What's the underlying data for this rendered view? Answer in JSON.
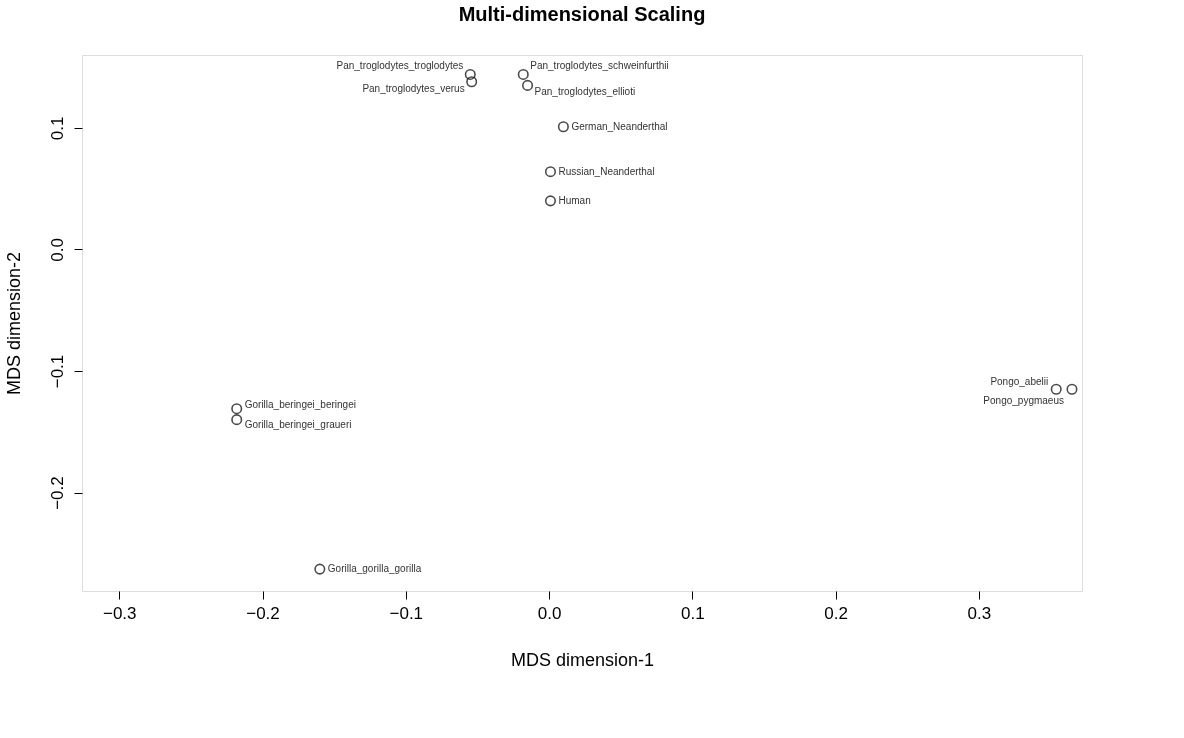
{
  "chart_data": {
    "type": "scatter",
    "title": "Multi-dimensional Scaling",
    "xlabel": "MDS dimension-1",
    "ylabel": "MDS dimension-2",
    "x": [
      -0.055,
      -0.018,
      -0.054,
      -0.015,
      0.01,
      0.001,
      0.001,
      -0.218,
      -0.218,
      -0.16,
      0.354,
      0.365
    ],
    "series": [
      {
        "color": "#000000",
        "values": [
          0.144,
          0.144,
          0.138,
          0.135,
          0.101,
          0.064,
          0.04,
          -0.131,
          -0.14,
          -0.263,
          -0.115,
          -0.115
        ]
      }
    ],
    "annotations": [
      {
        "text": "Pan_troglodytes_troglodytes",
        "x": -0.055,
        "y": 0.144
      },
      {
        "text": "Pan_troglodytes_schweinfurthii",
        "x": -0.018,
        "y": 0.144
      },
      {
        "text": "Pan_troglodytes_verus",
        "x": -0.054,
        "y": 0.138
      },
      {
        "text": "Pan_troglodytes_ellioti",
        "x": -0.015,
        "y": 0.135
      },
      {
        "text": "German_Neanderthal",
        "x": 0.01,
        "y": 0.101
      },
      {
        "text": "Russian_Neanderthal",
        "x": 0.001,
        "y": 0.064
      },
      {
        "text": "Human",
        "x": 0.001,
        "y": 0.04
      },
      {
        "text": "Gorilla_beringei_beringei",
        "x": -0.218,
        "y": -0.131
      },
      {
        "text": "Gorilla_beringei_graueri",
        "x": -0.218,
        "y": -0.14
      },
      {
        "text": "Gorilla_gorilla_gorilla",
        "x": -0.16,
        "y": -0.263
      },
      {
        "text": "Pongo_abelii",
        "x": 0.354,
        "y": -0.115
      },
      {
        "text": "Pongo_pygmaeus",
        "x": 0.365,
        "y": -0.115
      }
    ],
    "xlim": [
      -0.326,
      0.372
    ],
    "ylim": [
      -0.281,
      0.16
    ],
    "xticks": [
      -0.3,
      -0.2,
      -0.1,
      {
        "value": 0,
        "label": "0.0"
      },
      0.1,
      0.2,
      0.3
    ],
    "yticks": [
      -0.2,
      -0.1,
      {
        "value": 0,
        "label": "0.0"
      },
      0.1
    ],
    "marker": "circle",
    "grid": false
  }
}
